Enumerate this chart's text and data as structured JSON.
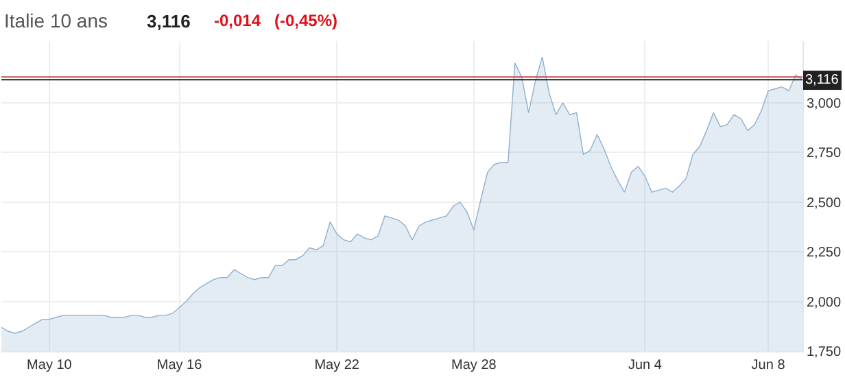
{
  "chart_data": {
    "type": "area",
    "title": "Italie 10 ans",
    "annotations": [
      "3,116",
      "-0,014",
      "(-0,45%)"
    ],
    "categories": [
      null,
      null,
      null,
      null,
      null,
      null,
      null,
      "May 10",
      null,
      null,
      null,
      null,
      null,
      null,
      null,
      null,
      null,
      null,
      null,
      null,
      null,
      null,
      null,
      null,
      null,
      null,
      "May 16",
      null,
      null,
      null,
      null,
      null,
      null,
      null,
      null,
      null,
      null,
      null,
      null,
      null,
      null,
      null,
      null,
      null,
      null,
      null,
      null,
      null,
      null,
      "May 22",
      null,
      null,
      null,
      null,
      null,
      null,
      null,
      null,
      null,
      null,
      null,
      null,
      null,
      null,
      null,
      null,
      null,
      null,
      null,
      "May 28",
      null,
      null,
      null,
      null,
      null,
      null,
      null,
      null,
      null,
      null,
      null,
      null,
      null,
      null,
      null,
      null,
      null,
      null,
      null,
      null,
      null,
      null,
      null,
      null,
      "Jun 4",
      null,
      null,
      null,
      null,
      null,
      null,
      null,
      null,
      null,
      null,
      null,
      null,
      null,
      null,
      null,
      null,
      null,
      "Jun 8",
      null,
      null,
      null,
      null,
      null
    ],
    "series": [
      {
        "color": "#8fb0cf",
        "values": [
          1.87,
          1.85,
          1.84,
          1.85,
          1.87,
          1.89,
          1.91,
          1.91,
          1.92,
          1.93,
          1.93,
          1.93,
          1.93,
          1.93,
          1.93,
          1.93,
          1.92,
          1.92,
          1.92,
          1.93,
          1.93,
          1.92,
          1.92,
          1.93,
          1.93,
          1.94,
          1.97,
          2.0,
          2.04,
          2.07,
          2.09,
          2.11,
          2.12,
          2.12,
          2.16,
          2.14,
          2.12,
          2.11,
          2.12,
          2.12,
          2.18,
          2.18,
          2.21,
          2.21,
          2.23,
          2.27,
          2.26,
          2.28,
          2.4,
          2.34,
          2.31,
          2.3,
          2.34,
          2.32,
          2.31,
          2.33,
          2.43,
          2.42,
          2.41,
          2.38,
          2.31,
          2.38,
          2.4,
          2.41,
          2.42,
          2.43,
          2.48,
          2.5,
          2.45,
          2.36,
          2.51,
          2.65,
          2.69,
          2.7,
          2.7,
          3.2,
          3.13,
          2.95,
          3.11,
          3.23,
          3.05,
          2.94,
          3.0,
          2.94,
          2.95,
          2.74,
          2.76,
          2.84,
          2.77,
          2.68,
          2.61,
          2.55,
          2.65,
          2.68,
          2.63,
          2.55,
          2.56,
          2.57,
          2.55,
          2.58,
          2.62,
          2.74,
          2.78,
          2.86,
          2.95,
          2.88,
          2.89,
          2.94,
          2.92,
          2.86,
          2.89,
          2.96,
          3.06,
          3.07,
          3.08,
          3.06,
          3.14,
          3.116
        ]
      }
    ],
    "ylim": [
      1.75,
      3.31
    ],
    "yticks": [
      {
        "value": 1.75,
        "label": "1,750"
      },
      {
        "value": 2.0,
        "label": "2,000"
      },
      {
        "value": 2.25,
        "label": "2,250"
      },
      {
        "value": 2.5,
        "label": "2,500"
      },
      {
        "value": 2.75,
        "label": "2,750"
      },
      {
        "value": 3.0,
        "label": "3,000"
      }
    ],
    "ref_lines": [
      {
        "axis": "y",
        "value": 3.13,
        "color": "#c0504d"
      },
      {
        "axis": "y",
        "value": 3.116,
        "label": "3,116",
        "color": "#222222"
      }
    ],
    "grid": true,
    "legend": false
  }
}
